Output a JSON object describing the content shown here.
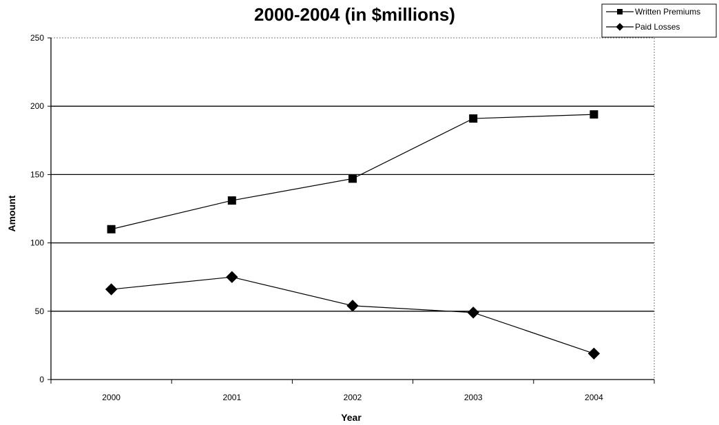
{
  "chart_data": {
    "type": "line",
    "title": "2000-2004 (in $millions)",
    "xlabel": "Year",
    "ylabel": "Amount",
    "categories": [
      "2000",
      "2001",
      "2002",
      "2003",
      "2004"
    ],
    "ylim": [
      0,
      250
    ],
    "yticks": [
      "0",
      "50",
      "100",
      "150",
      "200",
      "250"
    ],
    "grid": true,
    "legend_position": "top-right",
    "series": [
      {
        "name": "Written Premiums",
        "marker": "square",
        "values": [
          110,
          131,
          147,
          191,
          194
        ]
      },
      {
        "name": "Paid Losses",
        "marker": "diamond",
        "values": [
          66,
          75,
          54,
          49,
          19
        ]
      }
    ]
  }
}
